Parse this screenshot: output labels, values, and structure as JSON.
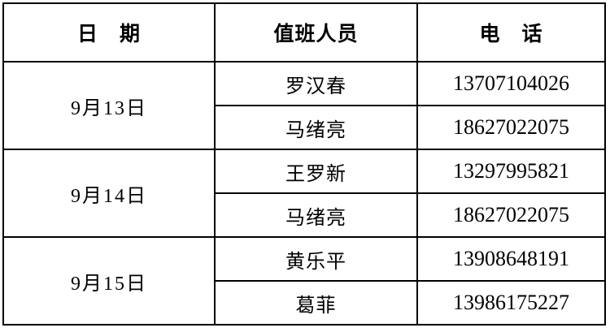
{
  "table": {
    "title": "duty-roster",
    "headers": {
      "date": "日　期",
      "person": "值班人员",
      "phone": "电　话"
    },
    "groups": [
      {
        "date": "9月13日",
        "entries": [
          {
            "name": "罗汉春",
            "phone": "13707104026"
          },
          {
            "name": "马绪亮",
            "phone": "18627022075"
          }
        ]
      },
      {
        "date": "9月14日",
        "entries": [
          {
            "name": "王罗新",
            "phone": "13297995821"
          },
          {
            "name": "马绪亮",
            "phone": "18627022075"
          }
        ]
      },
      {
        "date": "9月15日",
        "entries": [
          {
            "name": "黄乐平",
            "phone": "13908648191"
          },
          {
            "name": "葛菲",
            "phone": "13986175227"
          }
        ]
      }
    ],
    "colors": {
      "border": "#000000",
      "text": "#000000",
      "background": "#ffffff"
    }
  }
}
